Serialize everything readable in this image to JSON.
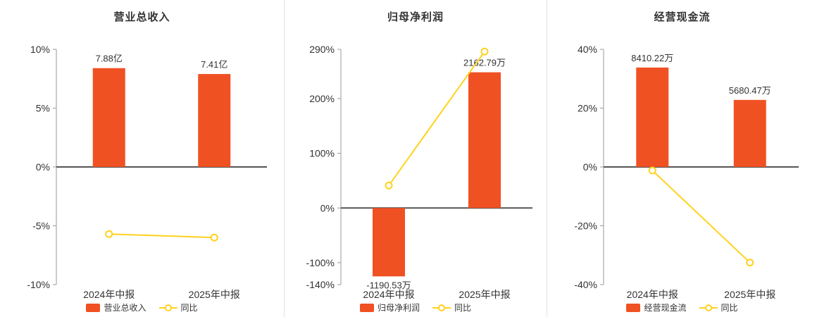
{
  "colors": {
    "bar": "#f05123",
    "line": "#ffd21e",
    "marker_fill": "#ffffff",
    "title_text": "#333333",
    "axis_text": "#333333",
    "label_text": "#333333",
    "axis_line": "#999999",
    "zero_line": "#555555",
    "divider": "#e3e3e3",
    "background": "#ffffff"
  },
  "chart_data": [
    {
      "type": "bar+line",
      "title": "营业总收入",
      "categories": [
        "2024年中报",
        "2025年中报"
      ],
      "bars": {
        "name": "营业总收入",
        "labels": [
          "7.88亿",
          "7.41亿"
        ],
        "plotted_pct": [
          8.4,
          7.9
        ]
      },
      "line": {
        "name": "同比",
        "plotted_pct": [
          -5.7,
          -6.0
        ]
      },
      "ylim": [
        -10,
        10
      ],
      "yticks_pct": [
        10,
        5,
        0,
        -5,
        -10
      ],
      "ytick_labels": [
        "10%",
        "5%",
        "0%",
        "-5%",
        "-10%"
      ],
      "legend_position": "bottom"
    },
    {
      "type": "bar+line",
      "title": "归母净利润",
      "categories": [
        "2024年中报",
        "2025年中报"
      ],
      "bars": {
        "name": "归母净利润",
        "labels": [
          "-1190.53万",
          "2162.79万"
        ],
        "plotted_pct": [
          -125,
          248
        ]
      },
      "line": {
        "name": "同比",
        "plotted_pct": [
          41,
          286
        ]
      },
      "ylim": [
        -140,
        290
      ],
      "yticks_pct": [
        290,
        200,
        100,
        0,
        -100,
        -140
      ],
      "ytick_labels": [
        "290%",
        "200%",
        "100%",
        "0%",
        "-100%",
        "-140%"
      ],
      "legend_position": "bottom"
    },
    {
      "type": "bar+line",
      "title": "经营现金流",
      "categories": [
        "2024年中报",
        "2025年中报"
      ],
      "bars": {
        "name": "经营现金流",
        "labels": [
          "8410.22万",
          "5680.47万"
        ],
        "plotted_pct": [
          33.8,
          22.8
        ]
      },
      "line": {
        "name": "同比",
        "plotted_pct": [
          -1.2,
          -32.5
        ]
      },
      "ylim": [
        -40,
        40
      ],
      "yticks_pct": [
        40,
        20,
        0,
        -20,
        -40
      ],
      "ytick_labels": [
        "40%",
        "20%",
        "0%",
        "-20%",
        "-40%"
      ],
      "legend_position": "bottom"
    }
  ]
}
